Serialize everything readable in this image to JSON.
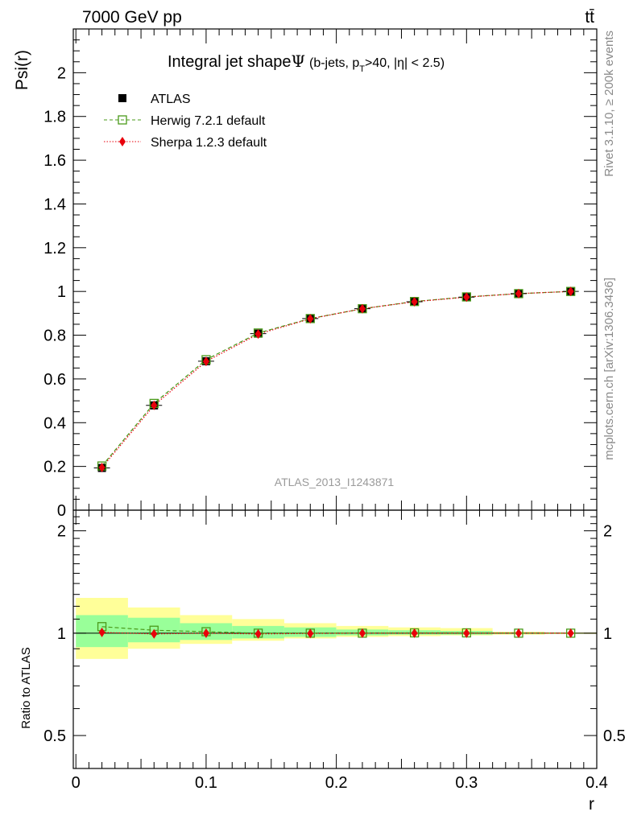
{
  "header": {
    "energy_label": "7000 GeV pp",
    "process_label": "tt̄"
  },
  "side_labels": {
    "rivet": "Rivet 3.1.10, ≥ 200k events",
    "mcplots": "mcplots.cern.ch [arXiv:1306.3436]"
  },
  "colors": {
    "herwig": "#4a9a1a",
    "sherpa": "#e8000b",
    "band_outer": "#ffff99",
    "band_inner": "#99ff99",
    "watermark": "#9a9a9a"
  },
  "chart_data": [
    {
      "type": "line",
      "title_main": "Integral jet shape",
      "title_symbol": "Ψ",
      "title_sub": "(b-jets, p",
      "title_sub_T": "T",
      "title_rest": ">40, |η| < 2.5)",
      "ylabel": "Psi(r)",
      "xlim": [
        -0.002,
        0.4
      ],
      "ylim": [
        0,
        2.2
      ],
      "yticks": [
        0,
        0.2,
        0.4,
        0.6,
        0.8,
        1,
        1.2,
        1.4,
        1.6,
        1.8,
        2
      ],
      "ytick_labels": [
        "0",
        "0.2",
        "0.4",
        "0.6",
        "0.8",
        "1",
        "1.2",
        "1.4",
        "1.6",
        "1.8",
        "2"
      ],
      "watermark": "ATLAS_2013_I1243871",
      "x": [
        0.02,
        0.06,
        0.1,
        0.14,
        0.18,
        0.22,
        0.26,
        0.3,
        0.34,
        0.38
      ],
      "series": [
        {
          "name": "ATLAS",
          "marker": "square",
          "values": [
            0.193,
            0.479,
            0.681,
            0.807,
            0.876,
            0.921,
            0.953,
            0.974,
            0.99,
            1.0
          ]
        },
        {
          "name": "Herwig 7.2.1 default",
          "marker": "open-square",
          "values": [
            0.202,
            0.488,
            0.688,
            0.81,
            0.876,
            0.921,
            0.954,
            0.975,
            0.99,
            1.0
          ]
        },
        {
          "name": "Sherpa 1.2.3 default",
          "marker": "diamond",
          "values": [
            0.195,
            0.479,
            0.68,
            0.805,
            0.875,
            0.921,
            0.953,
            0.974,
            0.99,
            1.0
          ]
        }
      ]
    },
    {
      "type": "line",
      "ylabel": "Ratio to ATLAS",
      "xlabel": "r",
      "xlim": [
        -0.002,
        0.4
      ],
      "ylim": [
        0.4,
        2.3
      ],
      "yscale": "log",
      "yticks": [
        0.5,
        1,
        2
      ],
      "ytick_labels": [
        "0.5",
        "1",
        "2"
      ],
      "xticks": [
        0,
        0.1,
        0.2,
        0.3,
        0.4
      ],
      "xtick_labels": [
        "0",
        "0.1",
        "0.2",
        "0.3",
        "0.4"
      ],
      "bins": [
        [
          0.0,
          0.04
        ],
        [
          0.04,
          0.08
        ],
        [
          0.08,
          0.12
        ],
        [
          0.12,
          0.16
        ],
        [
          0.16,
          0.2
        ],
        [
          0.2,
          0.24
        ],
        [
          0.24,
          0.28
        ],
        [
          0.28,
          0.32
        ],
        [
          0.32,
          0.36
        ],
        [
          0.36,
          0.4
        ]
      ],
      "band_outer": [
        [
          0.84,
          1.27
        ],
        [
          0.9,
          1.19
        ],
        [
          0.93,
          1.13
        ],
        [
          0.95,
          1.1
        ],
        [
          0.965,
          1.07
        ],
        [
          0.975,
          1.05
        ],
        [
          0.98,
          1.04
        ],
        [
          0.985,
          1.035
        ],
        [
          0.99,
          1.01
        ],
        [
          0.995,
          1.005
        ]
      ],
      "band_inner": [
        [
          0.91,
          1.13
        ],
        [
          0.94,
          1.11
        ],
        [
          0.955,
          1.07
        ],
        [
          0.965,
          1.05
        ],
        [
          0.975,
          1.04
        ],
        [
          0.985,
          1.025
        ],
        [
          0.99,
          1.02
        ],
        [
          0.99,
          1.015
        ],
        [
          0.995,
          1.005
        ],
        [
          0.998,
          1.002
        ]
      ],
      "series": [
        {
          "name": "Herwig 7.2.1 default",
          "values": [
            1.045,
            1.02,
            1.01,
            1.0,
            1.0,
            1.0,
            1.002,
            1.002,
            1.0,
            1.0
          ]
        },
        {
          "name": "Sherpa 1.2.3 default",
          "values": [
            1.005,
            0.995,
            1.0,
            0.995,
            0.998,
            1.0,
            1.0,
            1.0,
            1.0,
            1.0
          ]
        }
      ]
    }
  ]
}
